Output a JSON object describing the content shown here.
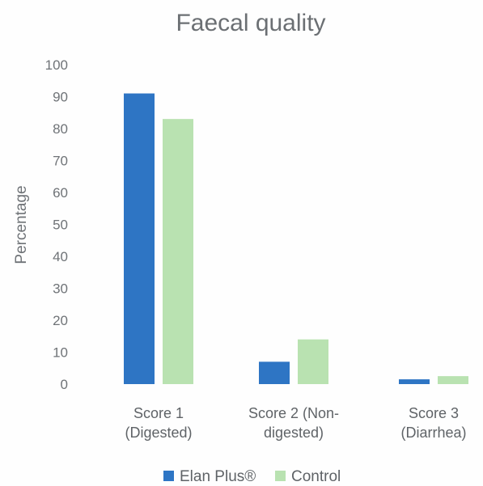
{
  "chart_data": {
    "type": "bar",
    "title": "Faecal quality",
    "xlabel": "",
    "ylabel": "Percentage",
    "ylim": [
      0,
      100
    ],
    "yticks": [
      "0",
      "10",
      "20",
      "30",
      "40",
      "50",
      "60",
      "70",
      "80",
      "90",
      "100"
    ],
    "categories": [
      [
        "Score 1",
        "(Digested)"
      ],
      [
        "Score 2 (Non-",
        "digested)"
      ],
      [
        "Score 3",
        "(Diarrhea)"
      ]
    ],
    "series": [
      {
        "name": "Elan Plus®",
        "color": "#2e75c4",
        "values": [
          91,
          7,
          1.5
        ]
      },
      {
        "name": "Control",
        "color": "#b9e2b1",
        "values": [
          83,
          14,
          2.5
        ]
      }
    ],
    "grid": false,
    "legend_position": "bottom"
  }
}
